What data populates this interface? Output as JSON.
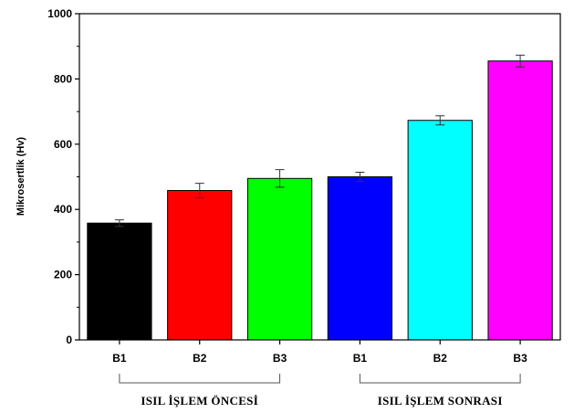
{
  "chart_data": {
    "type": "bar",
    "title": "",
    "xlabel": "",
    "ylabel": "Mikrosertlik (Hv)",
    "ylim": [
      0,
      1000
    ],
    "yticks": [
      0,
      200,
      400,
      600,
      800,
      1000
    ],
    "grid": false,
    "categories": [
      "B1",
      "B2",
      "B3",
      "B1",
      "B2",
      "B3"
    ],
    "values": [
      358,
      458,
      495,
      500,
      673,
      855
    ],
    "errors": [
      10,
      22,
      27,
      14,
      14,
      18
    ],
    "colors": [
      "#000000",
      "#ff0000",
      "#00ff00",
      "#0000ff",
      "#00ffff",
      "#ff00ff"
    ],
    "groups": [
      {
        "label": "ISIL İŞLEM ÖNCESİ",
        "bars": [
          0,
          1,
          2
        ]
      },
      {
        "label": "ISIL İŞLEM SONRASI",
        "bars": [
          3,
          4,
          5
        ]
      }
    ]
  }
}
